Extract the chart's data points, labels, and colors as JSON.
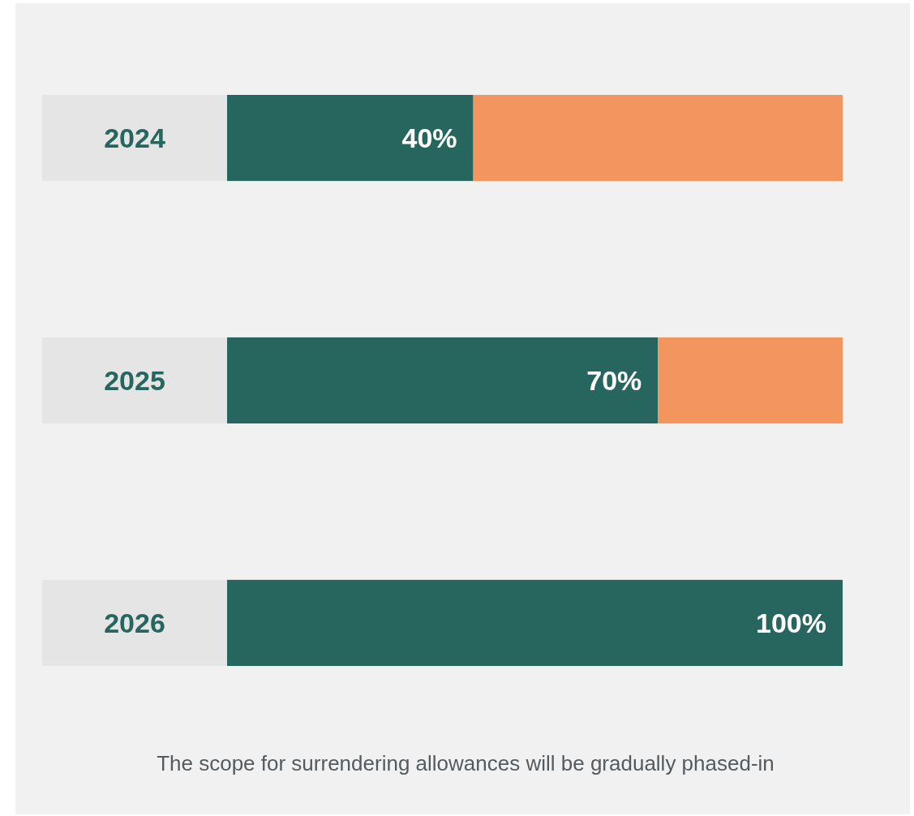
{
  "chart_data": {
    "type": "bar",
    "orientation": "horizontal",
    "stacked": true,
    "categories": [
      "2024",
      "2025",
      "2026"
    ],
    "series": [
      {
        "color": "#27665f",
        "values": [
          40,
          70,
          100
        ],
        "value_labels": [
          "40%",
          "70%",
          "100%"
        ]
      },
      {
        "color": "#f2955e",
        "values": [
          60,
          30,
          0
        ]
      }
    ],
    "xlim": [
      0,
      100
    ],
    "tick_labels": "y",
    "annotations": [
      "The scope for surrendering allowances will be gradually phased-in"
    ]
  }
}
